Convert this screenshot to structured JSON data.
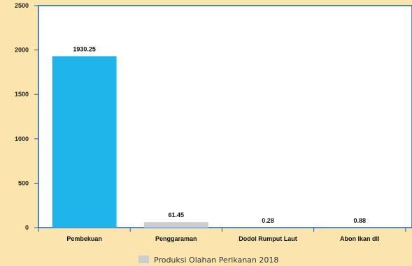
{
  "chart_data": {
    "type": "bar",
    "categories": [
      "Pembekuan",
      "Penggaraman",
      "Dodol Rumput Laut",
      "Abon Ikan dll"
    ],
    "series": [
      {
        "name": "Produksi Olahan Perikanan 2018",
        "values": [
          1930.25,
          61.45,
          0.28,
          0.88
        ],
        "data_labels": [
          "1930.25",
          "61.45",
          "0.28",
          "0.88"
        ]
      }
    ],
    "bar_colors": [
      "#1fb5ea",
      "#cdcdcd",
      "#1fb5ea",
      "#1fb5ea"
    ],
    "ylim": [
      0,
      2500
    ],
    "yticks": [
      0,
      500,
      1000,
      1500,
      2000,
      2500
    ],
    "grid": false,
    "legend_position": "bottom",
    "legend_color": "#cdcdcd",
    "plot_background": "#ffffff",
    "axis_color": "#1560bd",
    "title": "",
    "xlabel": "",
    "ylabel": ""
  }
}
